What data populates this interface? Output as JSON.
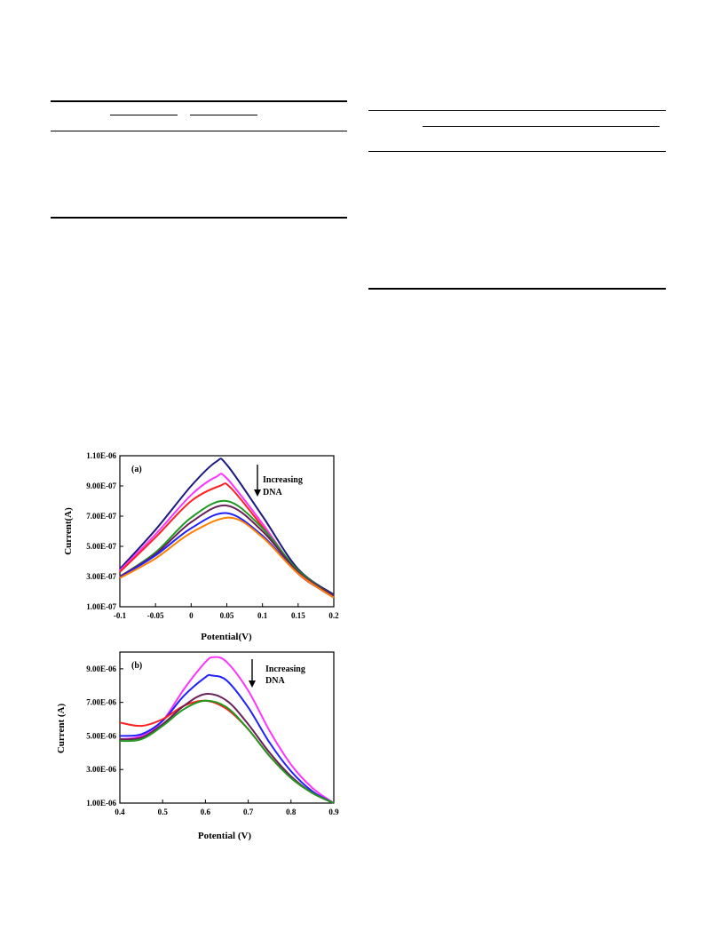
{
  "charts": [
    {
      "type": "line",
      "panel_label": "(a)",
      "annotation": [
        "Increasing",
        "DNA"
      ],
      "xlabel": "Potential(V)",
      "ylabel": "Current(A)",
      "xlim": [
        -0.1,
        0.2
      ],
      "ylim": [
        1e-07,
        1.1e-06
      ],
      "xticks": [
        -0.1,
        -0.05,
        0,
        0.05,
        0.1,
        0.15,
        0.2
      ],
      "xtick_labels": [
        "-0.1",
        "-0.05",
        "0",
        "0.05",
        "0.1",
        "0.15",
        "0.2"
      ],
      "yticks": [
        1e-07,
        3e-07,
        5e-07,
        7e-07,
        9e-07,
        1.1e-06
      ],
      "ytick_labels": [
        "1.00E-07",
        "3.00E-07",
        "5.00E-07",
        "7.00E-07",
        "9.00E-07",
        "1.10E-06"
      ],
      "series": [
        {
          "color": "#1a1a80",
          "values": [
            [
              -0.1,
              3.5e-07
            ],
            [
              -0.05,
              6.1e-07
            ],
            [
              0,
              9e-07
            ],
            [
              0.035,
              1.06e-06
            ],
            [
              0.05,
              1.04e-06
            ],
            [
              0.1,
              7e-07
            ],
            [
              0.15,
              3.5e-07
            ],
            [
              0.2,
              1.8e-07
            ]
          ]
        },
        {
          "color": "#ff33ff",
          "values": [
            [
              -0.1,
              3.4e-07
            ],
            [
              -0.05,
              5.8e-07
            ],
            [
              0,
              8.4e-07
            ],
            [
              0.035,
              9.6e-07
            ],
            [
              0.05,
              9.5e-07
            ],
            [
              0.1,
              6.5e-07
            ],
            [
              0.15,
              3.3e-07
            ],
            [
              0.2,
              1.7e-07
            ]
          ]
        },
        {
          "color": "#ff2020",
          "values": [
            [
              -0.1,
              3.3e-07
            ],
            [
              -0.05,
              5.6e-07
            ],
            [
              0,
              8e-07
            ],
            [
              0.04,
              9e-07
            ],
            [
              0.055,
              8.9e-07
            ],
            [
              0.1,
              6.3e-07
            ],
            [
              0.15,
              3.2e-07
            ],
            [
              0.2,
              1.7e-07
            ]
          ]
        },
        {
          "color": "#1f9a1f",
          "values": [
            [
              -0.1,
              3e-07
            ],
            [
              -0.05,
              4.6e-07
            ],
            [
              0,
              6.9e-07
            ],
            [
              0.05,
              8e-07
            ],
            [
              0.1,
              6.2e-07
            ],
            [
              0.15,
              3.4e-07
            ],
            [
              0.2,
              1.7e-07
            ]
          ]
        },
        {
          "color": "#6b1f5a",
          "values": [
            [
              -0.1,
              3e-07
            ],
            [
              -0.05,
              4.5e-07
            ],
            [
              0,
              6.6e-07
            ],
            [
              0.05,
              7.7e-07
            ],
            [
              0.1,
              6e-07
            ],
            [
              0.15,
              3.3e-07
            ],
            [
              0.2,
              1.7e-07
            ]
          ]
        },
        {
          "color": "#2020ff",
          "values": [
            [
              -0.1,
              2.95e-07
            ],
            [
              -0.05,
              4.4e-07
            ],
            [
              0,
              6.2e-07
            ],
            [
              0.05,
              7.2e-07
            ],
            [
              0.1,
              5.7e-07
            ],
            [
              0.15,
              3.2e-07
            ],
            [
              0.2,
              1.6e-07
            ]
          ]
        },
        {
          "color": "#ff8000",
          "values": [
            [
              -0.1,
              2.9e-07
            ],
            [
              -0.05,
              4.2e-07
            ],
            [
              0,
              5.9e-07
            ],
            [
              0.055,
              6.9e-07
            ],
            [
              0.1,
              5.6e-07
            ],
            [
              0.15,
              3.2e-07
            ],
            [
              0.2,
              1.6e-07
            ]
          ]
        }
      ]
    },
    {
      "type": "line",
      "panel_label": "(b)",
      "annotation": [
        "Increasing",
        "DNA"
      ],
      "xlabel": "Potential (V)",
      "ylabel": "Current (A)",
      "xlim": [
        0.4,
        0.9
      ],
      "ylim": [
        1e-06,
        1e-05
      ],
      "xticks": [
        0.4,
        0.5,
        0.6,
        0.7,
        0.8,
        0.9
      ],
      "xtick_labels": [
        "0.4",
        "0.5",
        "0.6",
        "0.7",
        "0.8",
        "0.9"
      ],
      "yticks": [
        1e-06,
        3e-06,
        5e-06,
        7e-06,
        9e-06
      ],
      "ytick_labels": [
        "1.00E-06",
        "3.00E-06",
        "5.00E-06",
        "7.00E-06",
        "9.00E-06"
      ],
      "series": [
        {
          "color": "#ff33ff",
          "values": [
            [
              0.4,
              4.8e-06
            ],
            [
              0.45,
              5e-06
            ],
            [
              0.5,
              5.9e-06
            ],
            [
              0.55,
              7.8e-06
            ],
            [
              0.6,
              9.4e-06
            ],
            [
              0.62,
              9.7e-06
            ],
            [
              0.65,
              9.4e-06
            ],
            [
              0.7,
              7.7e-06
            ],
            [
              0.75,
              5.3e-06
            ],
            [
              0.8,
              3.3e-06
            ],
            [
              0.85,
              1.9e-06
            ],
            [
              0.9,
              1e-06
            ]
          ]
        },
        {
          "color": "#2020ff",
          "values": [
            [
              0.4,
              5e-06
            ],
            [
              0.45,
              5.1e-06
            ],
            [
              0.5,
              5.9e-06
            ],
            [
              0.55,
              7.4e-06
            ],
            [
              0.6,
              8.5e-06
            ],
            [
              0.615,
              8.6e-06
            ],
            [
              0.65,
              8.3e-06
            ],
            [
              0.7,
              6.7e-06
            ],
            [
              0.75,
              4.6e-06
            ],
            [
              0.8,
              2.9e-06
            ],
            [
              0.85,
              1.7e-06
            ],
            [
              0.9,
              1e-06
            ]
          ]
        },
        {
          "color": "#ff2020",
          "values": [
            [
              0.4,
              5.8e-06
            ],
            [
              0.45,
              5.6e-06
            ],
            [
              0.5,
              6e-06
            ],
            [
              0.55,
              6.8e-06
            ],
            [
              0.6,
              7.1e-06
            ],
            [
              0.65,
              6.6e-06
            ],
            [
              0.7,
              5.4e-06
            ],
            [
              0.75,
              3.8e-06
            ],
            [
              0.8,
              2.5e-06
            ],
            [
              0.85,
              1.6e-06
            ],
            [
              0.9,
              1e-06
            ]
          ]
        },
        {
          "color": "#6b1f5a",
          "values": [
            [
              0.4,
              4.8e-06
            ],
            [
              0.45,
              4.9e-06
            ],
            [
              0.5,
              5.7e-06
            ],
            [
              0.55,
              6.8e-06
            ],
            [
              0.6,
              7.5e-06
            ],
            [
              0.65,
              7.1e-06
            ],
            [
              0.7,
              5.7e-06
            ],
            [
              0.75,
              4e-06
            ],
            [
              0.8,
              2.6e-06
            ],
            [
              0.85,
              1.6e-06
            ],
            [
              0.9,
              1e-06
            ]
          ]
        },
        {
          "color": "#1f9a1f",
          "values": [
            [
              0.4,
              4.7e-06
            ],
            [
              0.45,
              4.8e-06
            ],
            [
              0.5,
              5.6e-06
            ],
            [
              0.55,
              6.6e-06
            ],
            [
              0.6,
              7.1e-06
            ],
            [
              0.65,
              6.7e-06
            ],
            [
              0.7,
              5.4e-06
            ],
            [
              0.75,
              3.8e-06
            ],
            [
              0.8,
              2.5e-06
            ],
            [
              0.85,
              1.6e-06
            ],
            [
              0.9,
              1e-06
            ]
          ]
        }
      ]
    }
  ],
  "chart_data": [
    {
      "type": "line",
      "title": "(a)",
      "xlabel": "Potential(V)",
      "ylabel": "Current(A)",
      "xlim": [
        -0.1,
        0.2
      ],
      "ylim": [
        1e-07,
        1.1e-06
      ],
      "grid": false,
      "annotation": "Increasing DNA",
      "series_count": 7
    },
    {
      "type": "line",
      "title": "(b)",
      "xlabel": "Potential (V)",
      "ylabel": "Current (A)",
      "xlim": [
        0.4,
        0.9
      ],
      "ylim": [
        1e-06,
        1e-05
      ],
      "grid": false,
      "annotation": "Increasing DNA",
      "series_count": 5
    }
  ]
}
